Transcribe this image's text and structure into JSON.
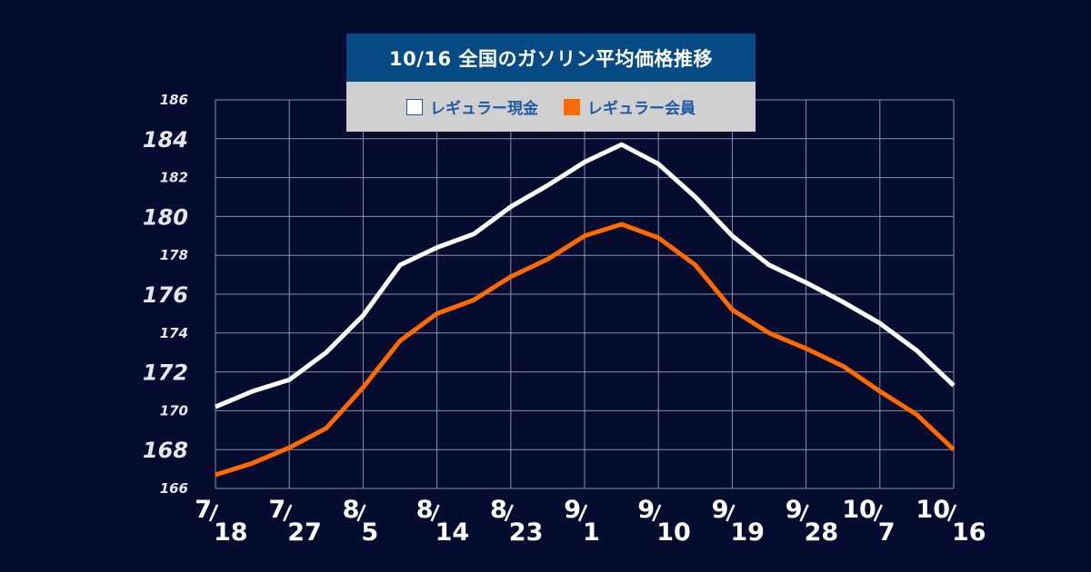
{
  "title": "10/16 全国のガソリン平均価格推移",
  "legend": {
    "regular_cash": "レギュラー現金",
    "regular_member": "レギュラー会員"
  },
  "colors": {
    "background": "#050C30",
    "title_bg": "#074B86",
    "legend_bg": "#D0D0D0",
    "legend_text": "#1E5AA8",
    "grid": "#8C8FA3",
    "series_cash": "#FFFFFF",
    "series_member": "#FF6A00"
  },
  "chart_data": {
    "type": "line",
    "title": "10/16 全国のガソリン平均価格推移",
    "xlabel": "",
    "ylabel": "",
    "ylim": [
      166,
      186
    ],
    "yticks": [
      166,
      168,
      170,
      172,
      174,
      176,
      178,
      180,
      182,
      184,
      186
    ],
    "grid": true,
    "legend_position": "top-center",
    "x_tick_labels": [
      {
        "month": "7",
        "day": "18"
      },
      {
        "month": "7",
        "day": "27"
      },
      {
        "month": "8",
        "day": "5"
      },
      {
        "month": "8",
        "day": "14"
      },
      {
        "month": "8",
        "day": "23"
      },
      {
        "month": "9",
        "day": "1"
      },
      {
        "month": "9",
        "day": "10"
      },
      {
        "month": "9",
        "day": "19"
      },
      {
        "month": "9",
        "day": "28"
      },
      {
        "month": "10",
        "day": "7"
      },
      {
        "month": "10",
        "day": "16"
      }
    ],
    "series": [
      {
        "name": "レギュラー現金",
        "color": "#FFFFFF",
        "values": [
          170.2,
          171.0,
          171.6,
          173.0,
          174.9,
          177.5,
          178.4,
          179.1,
          180.5,
          181.6,
          182.8,
          183.7,
          182.7,
          181.0,
          179.0,
          177.5,
          176.6,
          175.6,
          174.5,
          173.1,
          171.3
        ]
      },
      {
        "name": "レギュラー会員",
        "color": "#FF6A00",
        "values": [
          166.7,
          167.3,
          168.1,
          169.1,
          171.2,
          173.6,
          175.0,
          175.7,
          176.9,
          177.8,
          179.0,
          179.6,
          178.9,
          177.5,
          175.2,
          174.0,
          173.2,
          172.3,
          171.0,
          169.8,
          168.0
        ]
      }
    ]
  }
}
